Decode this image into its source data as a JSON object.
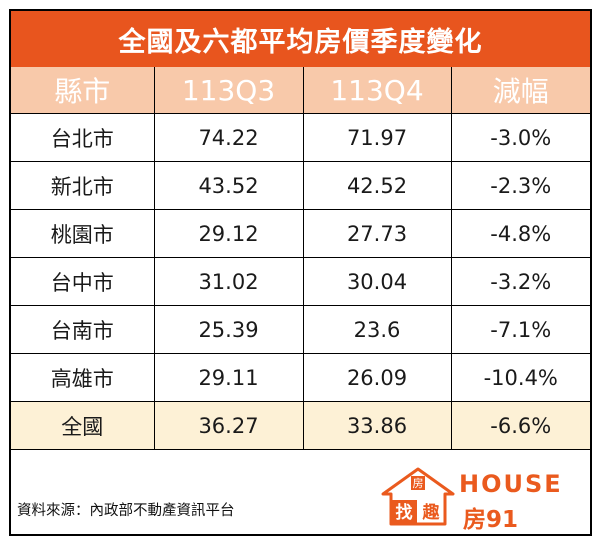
{
  "title": "全國及六都平均房價季度變化",
  "table": {
    "headers": [
      "縣市",
      "113Q3",
      "113Q4",
      "減幅"
    ],
    "rows": [
      {
        "city": "台北市",
        "q3": "74.22",
        "q4": "71.97",
        "change": "-3.0%"
      },
      {
        "city": "新北市",
        "q3": "43.52",
        "q4": "42.52",
        "change": "-2.3%"
      },
      {
        "city": "桃園市",
        "q3": "29.12",
        "q4": "27.73",
        "change": "-4.8%"
      },
      {
        "city": "台中市",
        "q3": "31.02",
        "q4": "30.04",
        "change": "-3.2%"
      },
      {
        "city": "台南市",
        "q3": "25.39",
        "q4": "23.6",
        "change": "-7.1%"
      },
      {
        "city": "高雄市",
        "q3": "29.11",
        "q4": "26.09",
        "change": "-10.4%"
      },
      {
        "city": "全國",
        "q3": "36.27",
        "q4": "33.86",
        "change": "-6.6%"
      }
    ]
  },
  "source": "資料來源：內政部不動產資訊平台",
  "logo": {
    "house_text": "HOUSE",
    "brand_text": "房91",
    "emblem_chars": [
      "房",
      "找",
      "趣"
    ],
    "color": "#ea5a1e"
  },
  "colors": {
    "title_bg": "#e8551e",
    "header_bg": "#f8c9aa",
    "total_row_bg": "#fdf1d6"
  }
}
